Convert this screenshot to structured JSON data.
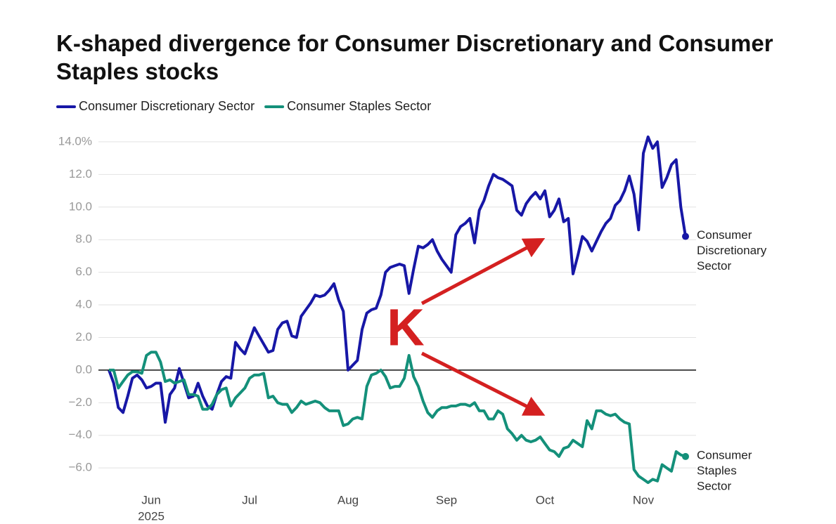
{
  "chart_data": {
    "type": "line",
    "title": "K-shaped divergence for Consumer Discretionary and Consumer Staples stocks",
    "categories": [
      null,
      null,
      null,
      null,
      null,
      null,
      null,
      null,
      null,
      "Jun",
      null,
      null,
      null,
      null,
      null,
      null,
      null,
      null,
      null,
      null,
      null,
      null,
      null,
      null,
      null,
      null,
      null,
      null,
      null,
      null,
      "Jul",
      null,
      null,
      null,
      null,
      null,
      null,
      null,
      null,
      null,
      null,
      null,
      null,
      null,
      null,
      null,
      null,
      null,
      null,
      null,
      null,
      "Aug",
      null,
      null,
      null,
      null,
      null,
      null,
      null,
      null,
      null,
      null,
      null,
      null,
      null,
      null,
      null,
      null,
      null,
      null,
      null,
      null,
      "Sep",
      null,
      null,
      null,
      null,
      null,
      null,
      null,
      null,
      null,
      null,
      null,
      null,
      null,
      null,
      null,
      null,
      null,
      null,
      null,
      null,
      "Oct",
      null,
      null,
      null,
      null,
      null,
      null,
      null,
      null,
      null,
      null,
      null,
      null,
      null,
      null,
      null,
      null,
      null,
      null,
      null,
      null,
      "Nov",
      null,
      null,
      null,
      null,
      null,
      null,
      null,
      null,
      null
    ],
    "x_year_label": "2025",
    "series": [
      {
        "name": "Consumer Discretionary Sector",
        "color": "#1717a6",
        "end_label_lines": [
          "Consumer",
          "Discretionary",
          "Sector"
        ],
        "values": [
          0,
          -0.8,
          -2.3,
          -2.6,
          -1.6,
          -0.5,
          -0.3,
          -0.6,
          -1.1,
          -1.0,
          -0.8,
          -0.8,
          -3.2,
          -1.5,
          -1.1,
          0.1,
          -0.8,
          -1.7,
          -1.6,
          -0.8,
          -1.6,
          -2.2,
          -2.4,
          -1.5,
          -0.7,
          -0.4,
          -0.5,
          1.7,
          1.3,
          1.0,
          1.8,
          2.6,
          2.1,
          1.6,
          1.1,
          1.2,
          2.5,
          2.9,
          3.0,
          2.1,
          2.0,
          3.3,
          3.7,
          4.1,
          4.6,
          4.5,
          4.6,
          4.9,
          5.3,
          4.3,
          3.6,
          0.0,
          0.3,
          0.6,
          2.5,
          3.5,
          3.7,
          3.8,
          4.6,
          6.0,
          6.3,
          6.4,
          6.5,
          6.4,
          4.7,
          6.2,
          7.6,
          7.5,
          7.7,
          8.0,
          7.3,
          6.8,
          6.4,
          6.0,
          8.3,
          8.8,
          9.0,
          9.3,
          7.8,
          9.8,
          10.4,
          11.3,
          12.0,
          11.8,
          11.7,
          11.5,
          11.3,
          9.8,
          9.5,
          10.2,
          10.6,
          10.9,
          10.5,
          11.0,
          9.4,
          9.8,
          10.5,
          9.1,
          9.3,
          5.9,
          7.0,
          8.2,
          7.9,
          7.3,
          7.9,
          8.5,
          9.0,
          9.3,
          10.1,
          10.4,
          11.0,
          11.9,
          10.8,
          8.6,
          13.3,
          14.3,
          13.6,
          14.0,
          11.2,
          11.8,
          12.6,
          12.9,
          10.0,
          8.2
        ]
      },
      {
        "name": "Consumer Staples Sector",
        "color": "#14907a",
        "end_label_lines": [
          "Consumer",
          "Staples",
          "Sector"
        ],
        "values": [
          0,
          0.0,
          -1.1,
          -0.7,
          -0.3,
          -0.1,
          -0.1,
          -0.2,
          0.9,
          1.1,
          1.1,
          0.5,
          -0.7,
          -0.6,
          -0.8,
          -0.7,
          -0.6,
          -1.5,
          -1.5,
          -1.6,
          -2.4,
          -2.4,
          -2.1,
          -1.5,
          -1.2,
          -1.1,
          -2.2,
          -1.7,
          -1.4,
          -1.1,
          -0.5,
          -0.3,
          -0.3,
          -0.2,
          -1.7,
          -1.6,
          -2.0,
          -2.1,
          -2.1,
          -2.6,
          -2.3,
          -1.9,
          -2.1,
          -2.0,
          -1.9,
          -2.0,
          -2.3,
          -2.5,
          -2.5,
          -2.5,
          -3.4,
          -3.3,
          -3.0,
          -2.9,
          -3.0,
          -1.0,
          -0.3,
          -0.2,
          0.0,
          -0.4,
          -1.1,
          -1.0,
          -1.0,
          -0.5,
          0.9,
          -0.4,
          -1.0,
          -1.9,
          -2.6,
          -2.9,
          -2.5,
          -2.3,
          -2.3,
          -2.2,
          -2.2,
          -2.1,
          -2.1,
          -2.2,
          -2.0,
          -2.5,
          -2.5,
          -3.0,
          -3.0,
          -2.5,
          -2.7,
          -3.6,
          -3.9,
          -4.3,
          -4.0,
          -4.3,
          -4.4,
          -4.3,
          -4.1,
          -4.5,
          -4.9,
          -5.0,
          -5.3,
          -4.8,
          -4.7,
          -4.3,
          -4.5,
          -4.7,
          -3.1,
          -3.6,
          -2.5,
          -2.5,
          -2.7,
          -2.8,
          -2.7,
          -3.0,
          -3.2,
          -3.3,
          -6.1,
          -6.5,
          -6.7,
          -6.9,
          -6.7,
          -6.8,
          -5.8,
          -6.0,
          -6.2,
          -5.0,
          -5.2,
          -5.3
        ]
      }
    ],
    "ylim": [
      -7.5,
      15
    ],
    "yticks": [
      {
        "value": -6,
        "label": "−6.0"
      },
      {
        "value": -4,
        "label": "−4.0"
      },
      {
        "value": -2,
        "label": "−2.0"
      },
      {
        "value": 0,
        "label": "0.0"
      },
      {
        "value": 2,
        "label": "2.0"
      },
      {
        "value": 4,
        "label": "4.0"
      },
      {
        "value": 6,
        "label": "6.0"
      },
      {
        "value": 8,
        "label": "8.0"
      },
      {
        "value": 10,
        "label": "10.0"
      },
      {
        "value": 12,
        "label": "12.0"
      },
      {
        "value": 14,
        "label": "14.0%"
      }
    ],
    "grid": true,
    "legend": "top-left",
    "annotation": "K"
  }
}
